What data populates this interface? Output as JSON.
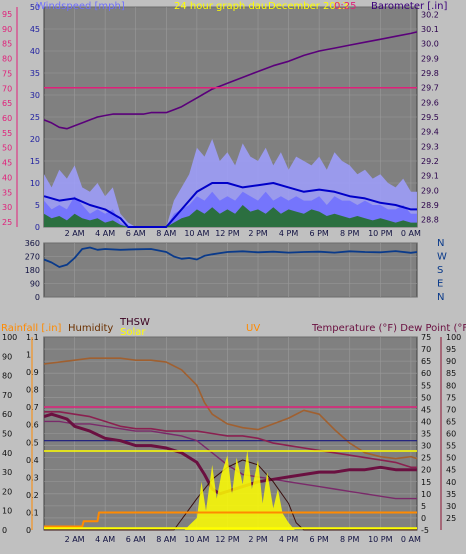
{
  "header": {
    "windspeed_label": "Windspeed [mph]",
    "graph_title": "24 hour graph dau",
    "date_label": "December 2013",
    "time_label": "0:25",
    "barometer_label": "Barometer [.in]"
  },
  "bottom_header": {
    "rainfall_label": "Rainfall [.in]",
    "humidity_label": "Humidity",
    "thsw_label": "THSW",
    "solar_label": "Solar",
    "uv_label": "UV",
    "temp_label": "Temperature (°F) Dew Point (°F)"
  },
  "x_ticks": [
    "2 AM",
    "4 AM",
    "6 AM",
    "8 AM",
    "10 AM",
    "12 PM",
    "2 PM",
    "4 PM",
    "6 PM",
    "8 PM",
    "10 PM",
    "0 AM"
  ],
  "colors": {
    "background": "#c0c0c0",
    "plot": "#808080",
    "windspeed": "#6f6fff",
    "gust": "#9f9fff",
    "avg_wind": "#0000c8",
    "wind_green": "#1f6f1f",
    "barometer": "#5a007a",
    "pink": "#e0207a",
    "direction": "#0a3a8a",
    "yellow": "#ffff00",
    "orange": "#ff8a00",
    "brown": "#8a3a20",
    "temperature": "#6a1040",
    "dew": "#8a2050",
    "humidity": "#a06030",
    "navy": "#1a1a80"
  },
  "chart_data": [
    {
      "id": "wind-baro",
      "type": "line",
      "title": "24 hour graph dau",
      "x_range_hours": [
        0,
        24.4
      ],
      "y_left_label": "Windspeed [mph]",
      "y_left_ticks": [
        0,
        5,
        10,
        15,
        20,
        25,
        30,
        35,
        40,
        45,
        50
      ],
      "y_left_range": [
        0,
        50
      ],
      "y_left_outer_ticks": [
        25,
        30,
        35,
        40,
        45,
        50,
        55,
        60,
        65,
        70,
        75,
        80,
        85,
        90,
        95
      ],
      "y_right_label": "Barometer [.in]",
      "y_right_ticks": [
        28.8,
        28.9,
        29,
        29.1,
        29.2,
        29.3,
        29.4,
        29.5,
        29.6,
        29.7,
        29.8,
        29.9,
        30,
        30.1,
        30.2
      ],
      "y_right_range": [
        28.75,
        30.25
      ],
      "series": [
        {
          "key": "barometer",
          "x": [
            0,
            0.5,
            1,
            1.5,
            2,
            2.5,
            3,
            3.5,
            4,
            4.5,
            5,
            5.5,
            6,
            6.5,
            7,
            7.5,
            8,
            8.5,
            9,
            9.5,
            10,
            10.5,
            11,
            11.5,
            12,
            13,
            14,
            15,
            16,
            17,
            18,
            19,
            20,
            21,
            22,
            23,
            24,
            24.4
          ],
          "y": [
            29.48,
            29.46,
            29.43,
            29.42,
            29.44,
            29.46,
            29.48,
            29.5,
            29.51,
            29.52,
            29.52,
            29.52,
            29.52,
            29.52,
            29.53,
            29.53,
            29.53,
            29.55,
            29.57,
            29.6,
            29.63,
            29.66,
            29.69,
            29.71,
            29.73,
            29.77,
            29.81,
            29.85,
            29.88,
            29.92,
            29.95,
            29.97,
            29.99,
            30.01,
            30.03,
            30.05,
            30.07,
            30.08
          ]
        },
        {
          "key": "reference",
          "x": [
            0,
            24.4
          ],
          "y": [
            29.7,
            29.7
          ]
        },
        {
          "key": "gust",
          "x": [
            0,
            0.5,
            1,
            1.5,
            2,
            2.5,
            3,
            3.5,
            4,
            4.5,
            5,
            5.5,
            6,
            6.5,
            7,
            7.5,
            8,
            8.5,
            9,
            9.5,
            10,
            10.5,
            11,
            11.5,
            12,
            12.5,
            13,
            13.5,
            14,
            14.5,
            15,
            15.5,
            16,
            16.5,
            17,
            17.5,
            18,
            18.5,
            19,
            19.5,
            20,
            20.5,
            21,
            21.5,
            22,
            22.5,
            23,
            23.5,
            24,
            24.4
          ],
          "y": [
            12,
            9,
            13,
            11,
            14,
            9,
            8,
            10,
            7,
            9,
            3,
            1,
            0,
            0,
            0,
            0,
            0,
            6,
            9,
            12,
            18,
            16,
            20,
            15,
            17,
            14,
            19,
            16,
            15,
            18,
            14,
            17,
            13,
            16,
            15,
            14,
            16,
            13,
            17,
            15,
            14,
            12,
            13,
            11,
            12,
            10,
            9,
            11,
            8,
            8
          ]
        },
        {
          "key": "windspeed",
          "x": [
            0,
            0.5,
            1,
            1.5,
            2,
            2.5,
            3,
            3.5,
            4,
            4.5,
            5,
            5.5,
            6,
            6.5,
            7,
            7.5,
            8,
            8.5,
            9,
            9.5,
            10,
            10.5,
            11,
            11.5,
            12,
            12.5,
            13,
            13.5,
            14,
            14.5,
            15,
            15.5,
            16,
            16.5,
            17,
            17.5,
            18,
            18.5,
            19,
            19.5,
            20,
            20.5,
            21,
            21.5,
            22,
            22.5,
            23,
            23.5,
            24,
            24.4
          ],
          "y": [
            6,
            4,
            5,
            4,
            7,
            5,
            3,
            4,
            3,
            4,
            1,
            0,
            0,
            0,
            0,
            0,
            0,
            3,
            4,
            5,
            7,
            6,
            8,
            6,
            7,
            6,
            8,
            7,
            6,
            8,
            6,
            7,
            6,
            7,
            6,
            6,
            7,
            5,
            7,
            6,
            6,
            5,
            6,
            5,
            5,
            4,
            4,
            5,
            3,
            3
          ]
        },
        {
          "key": "avg_wind",
          "x": [
            0,
            1,
            2,
            3,
            4,
            5,
            5.5,
            8,
            8.5,
            9,
            10,
            11,
            12,
            13,
            14,
            15,
            16,
            17,
            18,
            19,
            20,
            21,
            22,
            23,
            24,
            24.4
          ],
          "y": [
            7,
            6,
            6.5,
            5,
            4,
            2,
            0,
            0,
            2,
            4,
            8,
            10,
            10,
            9,
            9.5,
            10,
            9,
            8,
            8.5,
            8,
            7,
            6.5,
            5.5,
            5,
            4,
            4
          ]
        },
        {
          "key": "wind_green",
          "x": [
            0,
            0.5,
            1,
            1.5,
            2,
            2.5,
            3,
            3.5,
            4,
            4.5,
            5,
            5.5,
            8,
            8.5,
            9,
            9.5,
            10,
            10.5,
            11,
            11.5,
            12,
            12.5,
            13,
            13.5,
            14,
            14.5,
            15,
            15.5,
            16,
            16.5,
            17,
            17.5,
            18,
            18.5,
            19,
            19.5,
            20,
            20.5,
            21,
            21.5,
            22,
            22.5,
            23,
            23.5,
            24,
            24.4
          ],
          "y": [
            3,
            2,
            2.5,
            1.5,
            3,
            2,
            1.5,
            2,
            1,
            1.5,
            0.5,
            0,
            0,
            1,
            2,
            2.5,
            4,
            3,
            4.5,
            3,
            4,
            3,
            5,
            3.5,
            4,
            3,
            4.5,
            3,
            4,
            3.5,
            3,
            4,
            3.5,
            2.5,
            3,
            2.5,
            2,
            2.5,
            2,
            1.5,
            2,
            1.5,
            1,
            1.5,
            1,
            1
          ]
        }
      ]
    },
    {
      "id": "direction",
      "type": "line",
      "x_range_hours": [
        0,
        24.4
      ],
      "y_left_ticks": [
        0,
        90,
        180,
        270,
        360
      ],
      "y_left_range": [
        0,
        360
      ],
      "y_right_ticks": [
        "N",
        "W",
        "S",
        "E",
        "N"
      ],
      "series": [
        {
          "key": "direction",
          "x": [
            0,
            0.5,
            1,
            1.5,
            2,
            2.5,
            3,
            3.5,
            4,
            5,
            6,
            7,
            8,
            8.5,
            9,
            9.5,
            10,
            10.5,
            11,
            12,
            13,
            14,
            15,
            16,
            17,
            18,
            19,
            20,
            21,
            22,
            23,
            24,
            24.4
          ],
          "y": [
            250,
            230,
            200,
            215,
            260,
            320,
            330,
            315,
            320,
            315,
            318,
            320,
            300,
            270,
            255,
            260,
            250,
            275,
            285,
            300,
            305,
            298,
            302,
            296,
            300,
            302,
            296,
            305,
            300,
            298,
            306,
            295,
            300
          ]
        }
      ]
    },
    {
      "id": "rain-temp",
      "type": "line",
      "x_range_hours": [
        0,
        24.4
      ],
      "y_outer_left_ticks": [
        0,
        10,
        20,
        30,
        40,
        50,
        60,
        70,
        80,
        90,
        100
      ],
      "y_outer_left_range": [
        0,
        100
      ],
      "y_rain_ticks": [
        0,
        0.1,
        0.2,
        0.3,
        0.4,
        0.5,
        0.6,
        0.7,
        0.8,
        0.9,
        1,
        1.1
      ],
      "y_rain_range": [
        0,
        1.1
      ],
      "y_temp_ticks": [
        -5,
        0,
        5,
        10,
        15,
        20,
        25,
        30,
        35,
        40,
        45,
        50,
        55,
        60,
        65,
        70,
        75
      ],
      "y_temp_range": [
        -5,
        75
      ],
      "y_outer_right_ticks": [
        25,
        30,
        35,
        40,
        45,
        50,
        55,
        60,
        65,
        70,
        75,
        80,
        85,
        90,
        95,
        100
      ],
      "y_outer_right_range": [
        20,
        100
      ],
      "series": [
        {
          "key": "humidity",
          "x": [
            0,
            1,
            2,
            3,
            4,
            5,
            6,
            7,
            8,
            9,
            10,
            10.5,
            11,
            12,
            13,
            14,
            15,
            16,
            17,
            18,
            19,
            20,
            21,
            22,
            23,
            24,
            24.4
          ],
          "y": [
            86,
            87,
            88,
            89,
            89,
            89,
            88,
            88,
            87,
            83,
            75,
            66,
            60,
            55,
            53,
            52,
            55,
            58,
            62,
            60,
            52,
            45,
            40,
            38,
            37,
            38,
            37
          ]
        },
        {
          "key": "temperature",
          "x": [
            0,
            0.5,
            1,
            1.5,
            2,
            3,
            4,
            5,
            6,
            7,
            8,
            9,
            10,
            10.5,
            11,
            11.5,
            12,
            13,
            14,
            15,
            16,
            17,
            18,
            19,
            20,
            21,
            22,
            23,
            24,
            24.4
          ],
          "y": [
            42,
            43,
            42,
            41,
            38,
            36,
            33,
            32,
            30,
            30,
            29,
            27,
            23,
            18,
            12,
            10,
            11,
            13,
            15,
            16,
            17,
            18,
            19,
            19,
            20,
            20,
            21,
            20,
            20,
            20
          ]
        },
        {
          "key": "dew_high",
          "x": [
            0,
            1,
            2,
            3,
            4,
            5,
            6,
            7,
            8,
            9,
            10,
            11,
            12,
            13,
            14,
            15,
            16,
            17,
            18,
            19,
            20,
            21,
            22,
            23,
            24,
            24.4
          ],
          "y": [
            44,
            44,
            43,
            42,
            40,
            38,
            37,
            37,
            36,
            36,
            36,
            35,
            34,
            34,
            33,
            31,
            30,
            29,
            28,
            27,
            26,
            25,
            24,
            23,
            21,
            21
          ]
        },
        {
          "key": "dew_low",
          "x": [
            0,
            1,
            2,
            3,
            4,
            5,
            6,
            7,
            8,
            9,
            10,
            11,
            12,
            13,
            14,
            15,
            16,
            17,
            18,
            19,
            20,
            21,
            22,
            23,
            24,
            24.4
          ],
          "y": [
            40,
            40,
            39,
            39,
            38,
            37,
            36,
            36,
            35,
            34,
            32,
            27,
            22,
            18,
            17,
            16,
            15,
            14,
            13,
            12,
            11,
            10,
            9,
            8,
            8,
            8
          ]
        },
        {
          "key": "pink_ref",
          "x": [
            0,
            24.4
          ],
          "y": [
            46,
            46
          ]
        },
        {
          "key": "navy_ref",
          "x": [
            0,
            24.4
          ],
          "y": [
            32,
            32
          ]
        },
        {
          "key": "solar",
          "x": [
            0,
            9.2,
            9.5,
            10,
            10.3,
            10.6,
            11,
            11.3,
            11.6,
            12,
            12.3,
            12.6,
            13,
            13.3,
            13.6,
            14,
            14.3,
            14.6,
            15,
            15.3,
            15.6,
            16,
            16.4,
            24.4
          ],
          "y": [
            -5,
            -5,
            -3,
            0,
            15,
            3,
            22,
            8,
            18,
            26,
            10,
            25,
            14,
            28,
            12,
            24,
            6,
            19,
            4,
            12,
            2,
            -2,
            -5,
            -5
          ]
        },
        {
          "key": "uv_curve",
          "x": [
            0,
            8.5,
            10,
            11,
            12,
            13,
            14,
            15,
            16,
            16.5,
            17,
            24.4
          ],
          "y": [
            -5,
            -5,
            8,
            16,
            21,
            24,
            22,
            15,
            6,
            -2,
            -5,
            -5
          ]
        },
        {
          "key": "rain_total",
          "x": [
            0,
            2.5,
            2.6,
            3.5,
            3.6,
            24.4
          ],
          "y": [
            0.02,
            0.02,
            0.05,
            0.05,
            0.1,
            0.1
          ]
        },
        {
          "key": "rain_rate",
          "x": [
            0,
            2.5,
            3.5,
            24.4
          ],
          "y": [
            0.01,
            0.01,
            0.01,
            0.01
          ]
        },
        {
          "key": "yellow_ref",
          "x": [
            0,
            24.4
          ],
          "y": [
            0.45,
            0.45
          ]
        }
      ]
    }
  ]
}
